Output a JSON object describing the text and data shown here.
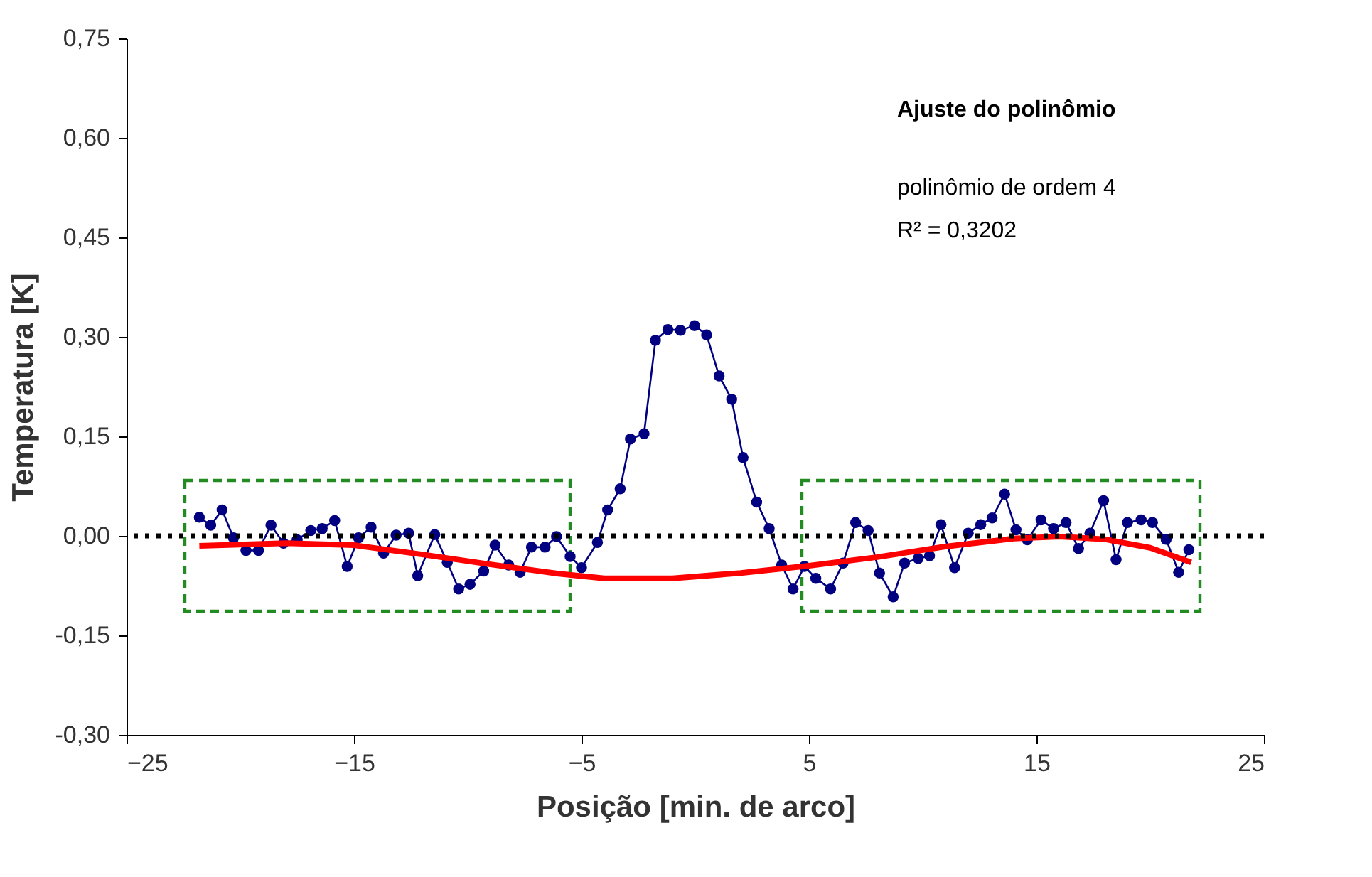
{
  "chart_data": {
    "type": "line",
    "xlabel": "Posição [min. de arco]",
    "ylabel": "Temperatura [K]",
    "annotations": [
      "Ajuste do polinômio",
      "polinômio de ordem 4",
      "R² = 0,3202"
    ],
    "xlim": [
      -25,
      25
    ],
    "xticks": [
      -25,
      -15,
      -5,
      5,
      15,
      25
    ],
    "ylim": [
      -0.3,
      0.75
    ],
    "yticks": [
      {
        "value": -0.3,
        "label": "-0,30"
      },
      {
        "value": -0.15,
        "label": "-0,15"
      },
      {
        "value": 0,
        "label": "0,00"
      },
      {
        "value": 0.15,
        "label": "0,15"
      },
      {
        "value": 0.3,
        "label": "0,30"
      },
      {
        "value": 0.45,
        "label": "0,45"
      },
      {
        "value": 0.6,
        "label": "0,60"
      },
      {
        "value": 0.75,
        "label": "0,75"
      }
    ],
    "grid": false,
    "ref_lines": [
      {
        "axis": "y",
        "value": 0,
        "color": "#000000",
        "line_style": "dotted"
      }
    ],
    "series": [
      {
        "color": "#000080",
        "marker": "circle",
        "line_style": "solid",
        "x": [
          -21.8,
          -21.3,
          -20.8,
          -20.3,
          -19.75,
          -19.2,
          -18.65,
          -18.1,
          -17.5,
          -16.9,
          -16.4,
          -15.85,
          -15.3,
          -14.8,
          -14.25,
          -13.7,
          -13.15,
          -12.6,
          -12.2,
          -11.45,
          -10.9,
          -10.4,
          -9.9,
          -9.3,
          -8.8,
          -8.2,
          -7.7,
          -7.2,
          -6.6,
          -6.1,
          -5.5,
          -5.0,
          -4.3,
          -3.85,
          -3.3,
          -2.85,
          -2.25,
          -1.75,
          -1.2,
          -0.65,
          -0.03,
          0.5,
          1.05,
          1.6,
          2.1,
          2.7,
          3.25,
          3.8,
          4.3,
          4.8,
          5.3,
          5.95,
          6.5,
          7.05,
          7.6,
          8.1,
          8.7,
          9.2,
          9.8,
          10.3,
          10.8,
          11.4,
          12.0,
          12.55,
          13.05,
          13.6,
          14.1,
          14.6,
          15.2,
          15.75,
          16.3,
          16.85,
          17.35,
          17.95,
          18.5,
          19.0,
          19.6,
          20.1,
          20.7,
          21.25,
          21.7
        ],
        "values": [
          0.028,
          0.016,
          0.039,
          -0.003,
          -0.022,
          -0.022,
          0.016,
          -0.011,
          -0.006,
          0.008,
          0.011,
          0.023,
          -0.046,
          -0.003,
          0.013,
          -0.026,
          0.001,
          0.004,
          -0.06,
          0.002,
          -0.04,
          -0.08,
          -0.073,
          -0.053,
          -0.014,
          -0.044,
          -0.055,
          -0.017,
          -0.017,
          -0.001,
          -0.031,
          -0.048,
          -0.01,
          0.039,
          0.071,
          0.146,
          0.154,
          0.295,
          0.311,
          0.31,
          0.317,
          0.303,
          0.241,
          0.206,
          0.118,
          0.051,
          0.011,
          -0.044,
          -0.08,
          -0.046,
          -0.064,
          -0.08,
          -0.041,
          0.02,
          0.008,
          -0.056,
          -0.092,
          -0.041,
          -0.034,
          -0.03,
          0.017,
          -0.048,
          0.004,
          0.017,
          0.027,
          0.063,
          0.009,
          -0.006,
          0.024,
          0.011,
          0.02,
          -0.019,
          0.004,
          0.053,
          -0.036,
          0.02,
          0.024,
          0.02,
          -0.005,
          -0.055,
          -0.021
        ]
      },
      {
        "color": "#ff0000",
        "marker": "none",
        "line_style": "solid",
        "x": [
          -21.8,
          -18,
          -15,
          -12,
          -9,
          -6,
          -4,
          -1,
          2,
          5,
          8,
          11,
          14,
          16,
          18,
          20,
          21.8
        ],
        "values": [
          -0.015,
          -0.011,
          -0.014,
          -0.028,
          -0.043,
          -0.057,
          -0.064,
          -0.064,
          -0.056,
          -0.045,
          -0.032,
          -0.016,
          -0.004,
          -0.001,
          -0.005,
          -0.018,
          -0.04
        ]
      }
    ]
  }
}
